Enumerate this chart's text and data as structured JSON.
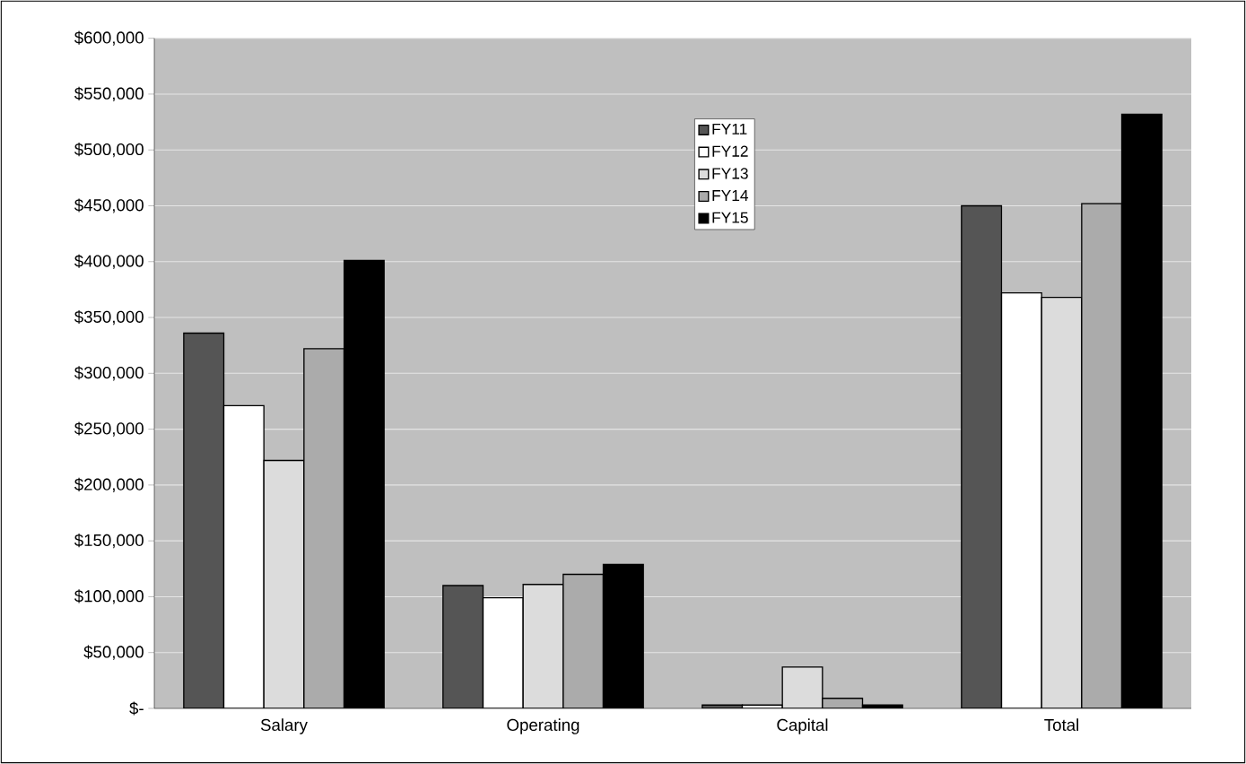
{
  "chart_data": {
    "type": "bar",
    "categories": [
      "Salary",
      "Operating",
      "Capital",
      "Total"
    ],
    "series": [
      {
        "name": "FY11",
        "color": "#555555",
        "values": [
          336000,
          110000,
          3000,
          450000
        ]
      },
      {
        "name": "FY12",
        "color": "#ffffff",
        "values": [
          271000,
          99000,
          3000,
          372000
        ]
      },
      {
        "name": "FY13",
        "color": "#dcdcdc",
        "values": [
          222000,
          111000,
          37000,
          368000
        ]
      },
      {
        "name": "FY14",
        "color": "#ababab",
        "values": [
          322000,
          120000,
          9000,
          452000
        ]
      },
      {
        "name": "FY15",
        "color": "#000000",
        "values": [
          401000,
          129000,
          3000,
          532000
        ]
      }
    ],
    "ylim": [
      0,
      600000
    ],
    "yticks": [
      {
        "value": 0,
        "label": "$-"
      },
      {
        "value": 50000,
        "label": "$50,000"
      },
      {
        "value": 100000,
        "label": "$100,000"
      },
      {
        "value": 150000,
        "label": "$150,000"
      },
      {
        "value": 200000,
        "label": "$200,000"
      },
      {
        "value": 250000,
        "label": "$250,000"
      },
      {
        "value": 300000,
        "label": "$300,000"
      },
      {
        "value": 350000,
        "label": "$350,000"
      },
      {
        "value": 400000,
        "label": "$400,000"
      },
      {
        "value": 450000,
        "label": "$450,000"
      },
      {
        "value": 500000,
        "label": "$500,000"
      },
      {
        "value": 550000,
        "label": "$550,000"
      },
      {
        "value": 600000,
        "label": "$600,000"
      }
    ],
    "grid": "y",
    "legend": "top"
  }
}
